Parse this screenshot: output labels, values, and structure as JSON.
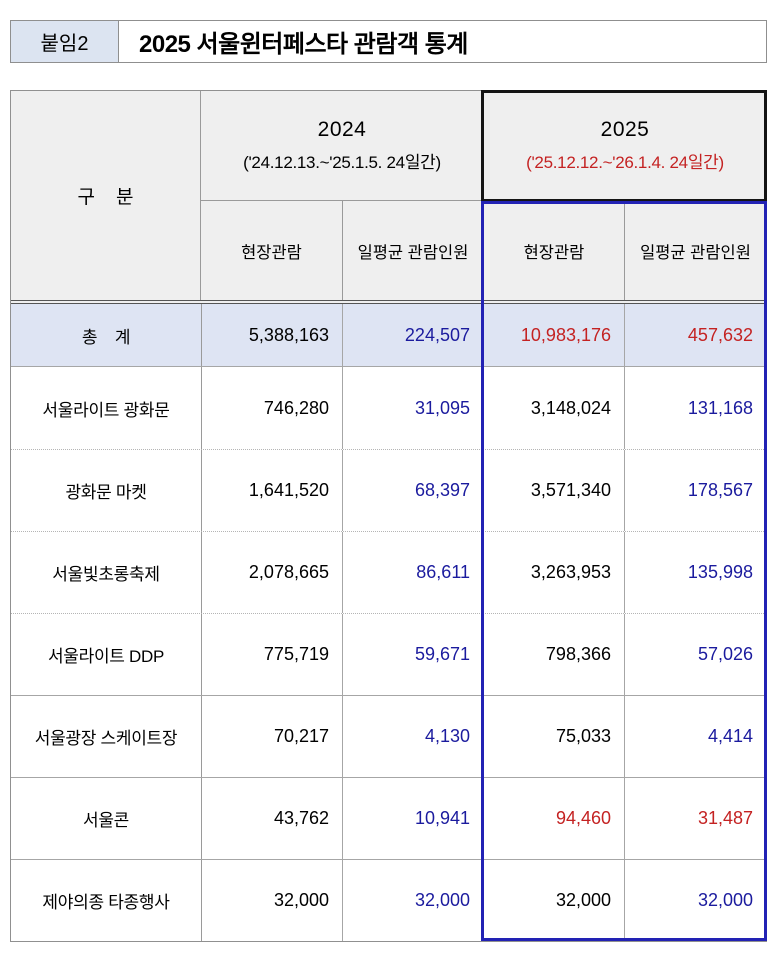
{
  "page": {
    "attachment_label": "붙임2",
    "title": "2025 서울윈터페스타 관람객 통계"
  },
  "table": {
    "category_header": "구    분",
    "year_groups": [
      {
        "year": "2024",
        "period": "('24.12.13.~'25.1.5. 24일간)",
        "period_color": "#000000"
      },
      {
        "year": "2025",
        "period": "('25.12.12.~'26.1.4. 24일간)",
        "period_color": "#c42222"
      }
    ],
    "sub_headers": [
      "현장관람",
      "일평균 관람인원",
      "현장관람",
      "일평균 관람인원"
    ],
    "rows": [
      {
        "label": "총    계",
        "values": [
          {
            "text": "5,388,163",
            "color": "#000000"
          },
          {
            "text": "224,507",
            "color": "#1b1b9e"
          },
          {
            "text": "10,983,176",
            "color": "#c42222"
          },
          {
            "text": "457,632",
            "color": "#c42222"
          }
        ]
      },
      {
        "label": "서울라이트 광화문",
        "values": [
          {
            "text": "746,280",
            "color": "#000000"
          },
          {
            "text": "31,095",
            "color": "#1b1b9e"
          },
          {
            "text": "3,148,024",
            "color": "#000000"
          },
          {
            "text": "131,168",
            "color": "#1b1b9e"
          }
        ]
      },
      {
        "label": "광화문 마켓",
        "values": [
          {
            "text": "1,641,520",
            "color": "#000000"
          },
          {
            "text": "68,397",
            "color": "#1b1b9e"
          },
          {
            "text": "3,571,340",
            "color": "#000000"
          },
          {
            "text": "178,567",
            "color": "#1b1b9e"
          }
        ]
      },
      {
        "label": "서울빛초롱축제",
        "values": [
          {
            "text": "2,078,665",
            "color": "#000000"
          },
          {
            "text": "86,611",
            "color": "#1b1b9e"
          },
          {
            "text": "3,263,953",
            "color": "#000000"
          },
          {
            "text": "135,998",
            "color": "#1b1b9e"
          }
        ]
      },
      {
        "label": "서울라이트 DDP",
        "values": [
          {
            "text": "775,719",
            "color": "#000000"
          },
          {
            "text": "59,671",
            "color": "#1b1b9e"
          },
          {
            "text": "798,366",
            "color": "#000000"
          },
          {
            "text": "57,026",
            "color": "#1b1b9e"
          }
        ]
      },
      {
        "label": "서울광장 스케이트장",
        "values": [
          {
            "text": "70,217",
            "color": "#000000"
          },
          {
            "text": "4,130",
            "color": "#1b1b9e"
          },
          {
            "text": "75,033",
            "color": "#000000"
          },
          {
            "text": "4,414",
            "color": "#1b1b9e"
          }
        ]
      },
      {
        "label": "서울콘",
        "values": [
          {
            "text": "43,762",
            "color": "#000000"
          },
          {
            "text": "10,941",
            "color": "#1b1b9e"
          },
          {
            "text": "94,460",
            "color": "#c42222"
          },
          {
            "text": "31,487",
            "color": "#c42222"
          }
        ]
      },
      {
        "label": "제야의종 타종행사",
        "values": [
          {
            "text": "32,000",
            "color": "#000000"
          },
          {
            "text": "32,000",
            "color": "#1b1b9e"
          },
          {
            "text": "32,000",
            "color": "#000000"
          },
          {
            "text": "32,000",
            "color": "#1b1b9e"
          }
        ]
      }
    ],
    "colors": {
      "highlight_border_blue": "#2222b4",
      "highlight_border_black": "#141414",
      "header_bg": "#efefef",
      "total_row_bg": "#dee4f3",
      "badge_bg": "#dce4f1",
      "value_blue": "#1b1b9e",
      "value_red": "#c42222"
    }
  }
}
